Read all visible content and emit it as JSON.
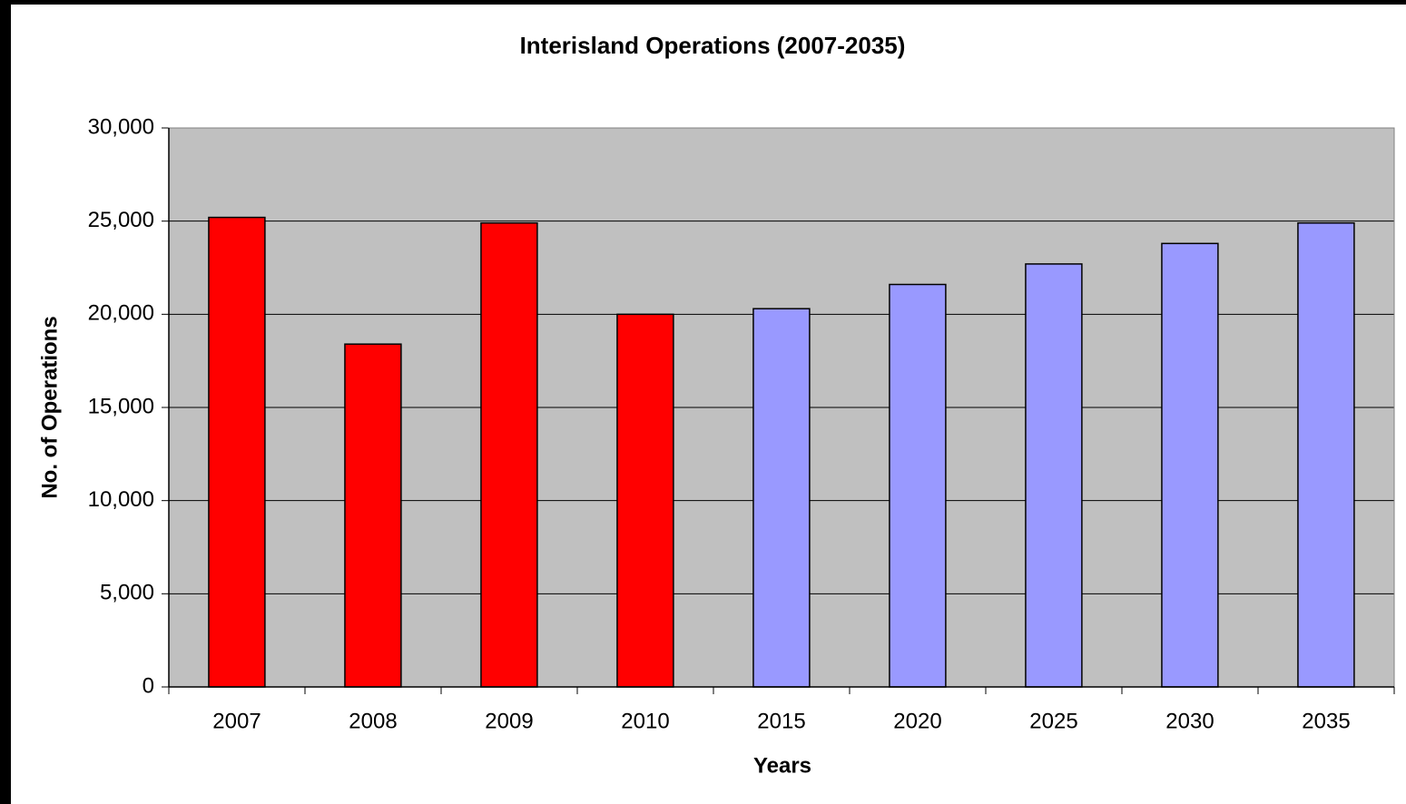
{
  "chart_data": {
    "type": "bar",
    "title": "Interisland Operations (2007-2035)",
    "x_label": "Years",
    "y_label": "No. of Operations",
    "categories": [
      "2007",
      "2008",
      "2009",
      "2010",
      "2015",
      "2020",
      "2025",
      "2030",
      "2035"
    ],
    "values": [
      25200,
      18400,
      24900,
      20000,
      20300,
      21600,
      22700,
      23800,
      24900
    ],
    "colors": [
      "#ff0000",
      "#ff0000",
      "#ff0000",
      "#ff0000",
      "#9999ff",
      "#9999ff",
      "#9999ff",
      "#9999ff",
      "#9999ff"
    ],
    "ylim": [
      0,
      30000
    ],
    "yticks": [
      0,
      {
        "value": 5000,
        "label": "5,000"
      },
      {
        "value": 10000,
        "label": "10,000"
      },
      {
        "value": 15000,
        "label": "15,000"
      },
      {
        "value": 20000,
        "label": "20,000"
      },
      {
        "value": 25000,
        "label": "25,000"
      },
      {
        "value": 30000,
        "label": "30,000"
      }
    ],
    "grid": true
  }
}
